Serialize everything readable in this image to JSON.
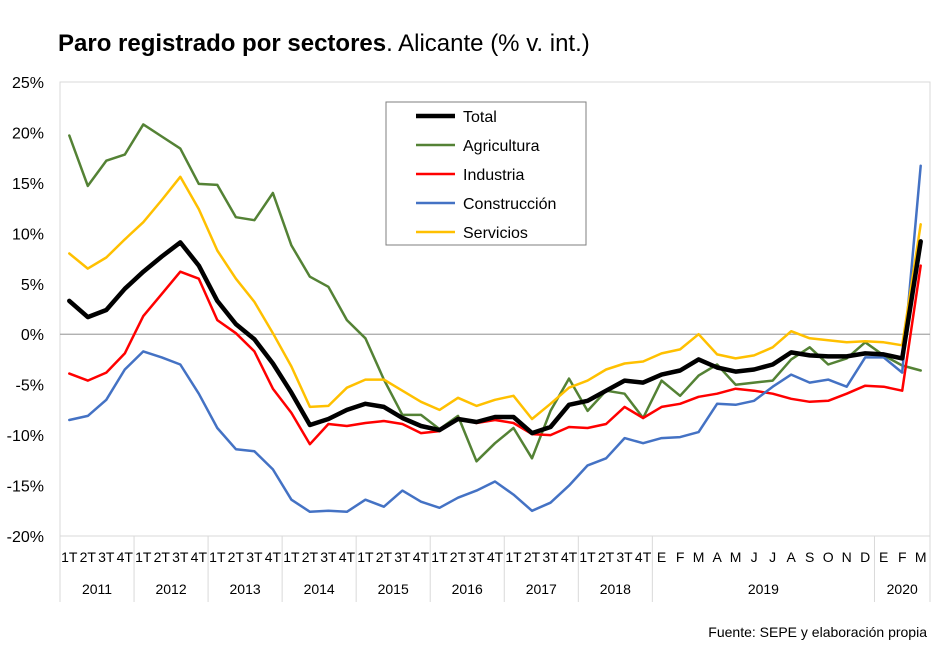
{
  "title": {
    "bold": "Paro registrado por sectores",
    "rest": ". Alicante (% v. int.)"
  },
  "source": "Fuente: SEPE y elaboración propia",
  "colors": {
    "Total": "#000000",
    "Agricultura": "#548235",
    "Industria": "#ff0000",
    "Construcción": "#4472c4",
    "Servicios": "#ffc000"
  },
  "chart_data": {
    "type": "line",
    "title": "Paro registrado por sectores. Alicante (% v. int.)",
    "ylim": [
      -20,
      25
    ],
    "y_ticks": [
      "25%",
      "20%",
      "15%",
      "10%",
      "5%",
      "0%",
      "-5%",
      "-10%",
      "-15%",
      "-20%"
    ],
    "y_tick_values": [
      25,
      20,
      15,
      10,
      5,
      0,
      -5,
      -10,
      -15,
      -20
    ],
    "grid": false,
    "legend_position": "top-center",
    "x": [
      "1T",
      "2T",
      "3T",
      "4T",
      "1T",
      "2T",
      "3T",
      "4T",
      "1T",
      "2T",
      "3T",
      "4T",
      "1T",
      "2T",
      "3T",
      "4T",
      "1T",
      "2T",
      "3T",
      "4T",
      "1T",
      "2T",
      "3T",
      "4T",
      "1T",
      "2T",
      "3T",
      "4T",
      "1T",
      "2T",
      "3T",
      "4T",
      "E",
      "F",
      "M",
      "A",
      "M",
      "J",
      "J",
      "A",
      "S",
      "O",
      "N",
      "D",
      "E",
      "F",
      "M"
    ],
    "x_groups": [
      {
        "label": "2011",
        "count": 4
      },
      {
        "label": "2012",
        "count": 4
      },
      {
        "label": "2013",
        "count": 4
      },
      {
        "label": "2014",
        "count": 4
      },
      {
        "label": "2015",
        "count": 4
      },
      {
        "label": "2016",
        "count": 4
      },
      {
        "label": "2017",
        "count": 4
      },
      {
        "label": "2018",
        "count": 4
      },
      {
        "label": "2019",
        "count": 12
      },
      {
        "label": "2020",
        "count": 3
      }
    ],
    "series": [
      {
        "name": "Agricultura",
        "values": [
          19.7,
          14.7,
          17.2,
          17.8,
          20.8,
          19.6,
          18.4,
          14.9,
          14.8,
          11.6,
          11.3,
          14.0,
          8.8,
          5.7,
          4.7,
          1.4,
          -0.4,
          -4.5,
          -8.0,
          -8.0,
          -9.4,
          -8.1,
          -12.6,
          -10.8,
          -9.3,
          -12.3,
          -7.6,
          -4.4,
          -7.6,
          -5.6,
          -5.9,
          -8.3,
          -4.6,
          -6.1,
          -4.1,
          -3.0,
          -5.0,
          -4.8,
          -4.6,
          -2.5,
          -1.3,
          -3.0,
          -2.4,
          -0.8,
          -2.1,
          -3.1,
          -3.6
        ]
      },
      {
        "name": "Industria",
        "values": [
          -3.9,
          -4.6,
          -3.8,
          -1.9,
          1.8,
          4.0,
          6.2,
          5.5,
          1.4,
          0.1,
          -1.7,
          -5.4,
          -7.8,
          -10.9,
          -8.9,
          -9.1,
          -8.8,
          -8.6,
          -8.9,
          -9.8,
          -9.6,
          -8.3,
          -8.8,
          -8.5,
          -8.8,
          -9.9,
          -10.0,
          -9.2,
          -9.3,
          -8.9,
          -7.2,
          -8.3,
          -7.2,
          -6.9,
          -6.2,
          -5.9,
          -5.4,
          -5.6,
          -5.9,
          -6.4,
          -6.7,
          -6.6,
          -5.9,
          -5.1,
          -5.2,
          -5.6,
          6.8
        ]
      },
      {
        "name": "Construcción",
        "values": [
          -8.5,
          -8.1,
          -6.5,
          -3.5,
          -1.7,
          -2.3,
          -3.0,
          -5.9,
          -9.3,
          -11.4,
          -11.6,
          -13.4,
          -16.4,
          -17.6,
          -17.5,
          -17.6,
          -16.4,
          -17.1,
          -15.5,
          -16.6,
          -17.2,
          -16.2,
          -15.5,
          -14.6,
          -15.9,
          -17.5,
          -16.7,
          -15.0,
          -13.0,
          -12.3,
          -10.3,
          -10.8,
          -10.3,
          -10.2,
          -9.7,
          -6.9,
          -7.0,
          -6.6,
          -5.2,
          -4.0,
          -4.8,
          -4.5,
          -5.2,
          -2.3,
          -2.3,
          -3.8,
          16.7
        ]
      },
      {
        "name": "Servicios",
        "values": [
          8.0,
          6.5,
          7.6,
          9.4,
          11.1,
          13.3,
          15.6,
          12.4,
          8.3,
          5.5,
          3.2,
          0.1,
          -3.2,
          -7.2,
          -7.1,
          -5.3,
          -4.5,
          -4.5,
          -5.6,
          -6.7,
          -7.5,
          -6.3,
          -7.1,
          -6.5,
          -6.1,
          -8.4,
          -6.9,
          -5.3,
          -4.6,
          -3.5,
          -2.9,
          -2.7,
          -1.9,
          -1.5,
          0.0,
          -2.0,
          -2.4,
          -2.1,
          -1.3,
          0.3,
          -0.4,
          -0.6,
          -0.8,
          -0.7,
          -0.8,
          -1.1,
          10.9
        ]
      },
      {
        "name": "Total",
        "values": [
          3.3,
          1.7,
          2.4,
          4.5,
          6.2,
          7.7,
          9.1,
          6.8,
          3.3,
          1.0,
          -0.5,
          -2.9,
          -5.8,
          -9.0,
          -8.4,
          -7.5,
          -6.9,
          -7.2,
          -8.3,
          -9.1,
          -9.5,
          -8.4,
          -8.7,
          -8.2,
          -8.2,
          -9.8,
          -9.2,
          -7.0,
          -6.6,
          -5.6,
          -4.6,
          -4.8,
          -4.0,
          -3.6,
          -2.5,
          -3.3,
          -3.7,
          -3.5,
          -3.0,
          -1.8,
          -2.1,
          -2.2,
          -2.2,
          -1.9,
          -2.0,
          -2.4,
          9.2
        ]
      }
    ]
  }
}
